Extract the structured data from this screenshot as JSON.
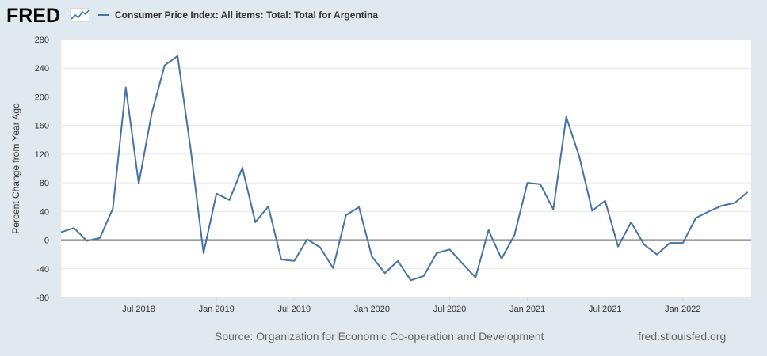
{
  "header": {
    "logo_text": "FRED",
    "logo_icon": "line-chart-icon"
  },
  "chart_data": {
    "type": "line",
    "legend_position": "top-left",
    "grid": true,
    "ylabel": "Percent Change from Year Ago",
    "ylim": [
      -80,
      280
    ],
    "yticks": [
      -80,
      -40,
      0,
      40,
      80,
      120,
      160,
      200,
      240,
      280
    ],
    "xtick_labels": [
      "Jul 2018",
      "Jan 2019",
      "Jul 2019",
      "Jan 2020",
      "Jul 2020",
      "Jan 2021",
      "Jul 2021",
      "Jan 2022"
    ],
    "series": [
      {
        "name": "Consumer Price Index: All items: Total: Total for Argentina",
        "color": "#4572a7",
        "x": [
          "2018-01",
          "2018-02",
          "2018-03",
          "2018-04",
          "2018-05",
          "2018-06",
          "2018-07",
          "2018-08",
          "2018-09",
          "2018-10",
          "2018-11",
          "2018-12",
          "2019-01",
          "2019-02",
          "2019-03",
          "2019-04",
          "2019-05",
          "2019-06",
          "2019-07",
          "2019-08",
          "2019-09",
          "2019-10",
          "2019-11",
          "2019-12",
          "2020-01",
          "2020-02",
          "2020-03",
          "2020-04",
          "2020-05",
          "2020-06",
          "2020-07",
          "2020-08",
          "2020-09",
          "2020-10",
          "2020-11",
          "2020-12",
          "2021-01",
          "2021-02",
          "2021-03",
          "2021-04",
          "2021-05",
          "2021-06",
          "2021-07",
          "2021-08",
          "2021-09",
          "2021-10",
          "2021-11",
          "2021-12",
          "2022-01",
          "2022-02",
          "2022-03",
          "2022-04",
          "2022-05",
          "2022-06"
        ],
        "values": [
          11,
          17,
          -1,
          3,
          44,
          213,
          79,
          177,
          244,
          257,
          128,
          -18,
          65,
          56,
          101,
          25,
          47,
          -27,
          -29,
          1,
          -10,
          -39,
          35,
          46,
          -23,
          -46,
          -29,
          -56,
          -50,
          -18,
          -13,
          -33,
          -52,
          14,
          -26,
          7,
          80,
          78,
          43,
          172,
          117,
          41,
          55,
          -9,
          25,
          -6,
          -20,
          -4,
          -4,
          31,
          40,
          48,
          52,
          67
        ]
      }
    ]
  },
  "footer": {
    "source": "Source: Organization for Economic Co-operation and Development",
    "site": "fred.stlouisfed.org"
  }
}
